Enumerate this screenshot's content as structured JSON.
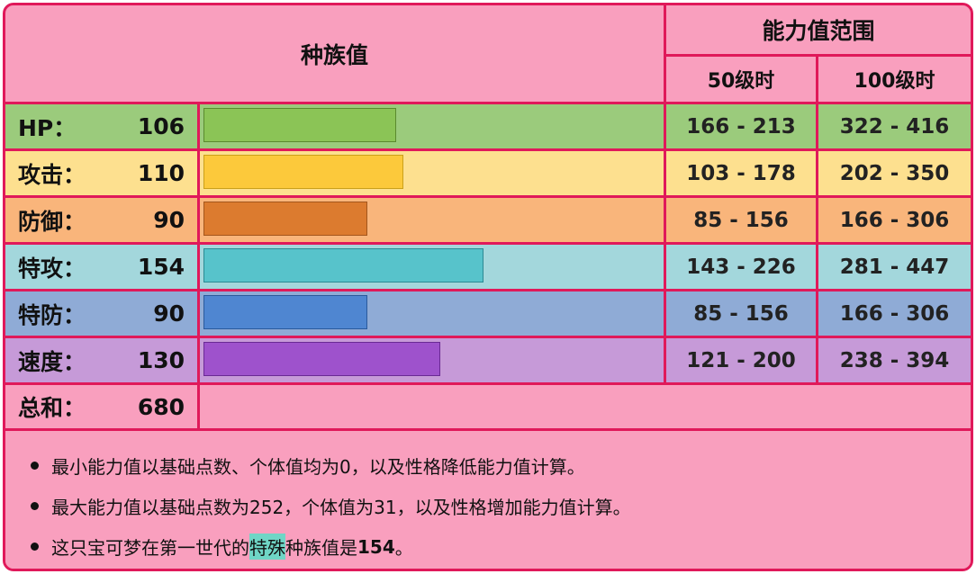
{
  "header": {
    "base_stats_label": "种族值",
    "range_label": "能力值范围",
    "lv50_label": "50级时",
    "lv100_label": "100级时"
  },
  "stats": [
    {
      "name": "HP：",
      "value": 106,
      "lv50": "166 - 213",
      "lv100": "322 - 416",
      "row_color": "#9bcb7c",
      "bar_color": "#8bc456",
      "bar_border": "#5a8a2e"
    },
    {
      "name": "攻击：",
      "value": 110,
      "lv50": "103 - 178",
      "lv100": "202 - 350",
      "row_color": "#fde08f",
      "bar_color": "#fcc93b",
      "bar_border": "#caa01a"
    },
    {
      "name": "防御：",
      "value": 90,
      "lv50": "85 - 156",
      "lv100": "166 - 306",
      "row_color": "#f9b57b",
      "bar_color": "#dc7b2f",
      "bar_border": "#a3561c"
    },
    {
      "name": "特攻：",
      "value": 154,
      "lv50": "143 - 226",
      "lv100": "281 - 447",
      "row_color": "#a3d7dc",
      "bar_color": "#57c3cb",
      "bar_border": "#2c8a93"
    },
    {
      "name": "特防：",
      "value": 90,
      "lv50": "85 - 156",
      "lv100": "166 - 306",
      "row_color": "#8fabd6",
      "bar_color": "#4f86d1",
      "bar_border": "#2a5a9c"
    },
    {
      "name": "速度：",
      "value": 130,
      "lv50": "121 - 200",
      "lv100": "238 - 394",
      "row_color": "#c69ad8",
      "bar_color": "#9e52cc",
      "bar_border": "#6a2a94"
    }
  ],
  "total": {
    "name": "总和：",
    "value": 680
  },
  "notes": [
    {
      "text": "最小能力值以基础点数、个体值均为0，以及性格降低能力值计算。"
    },
    {
      "text": "最大能力值以基础点数为252，个体值为31，以及性格增加能力值计算。"
    },
    {
      "prefix": "这只宝可梦在第一世代的",
      "highlight": "特殊",
      "suffix": "种族值是",
      "bold": "154",
      "end": "。"
    }
  ],
  "colors": {
    "border": "#e0195a",
    "background": "#f99fbe"
  }
}
